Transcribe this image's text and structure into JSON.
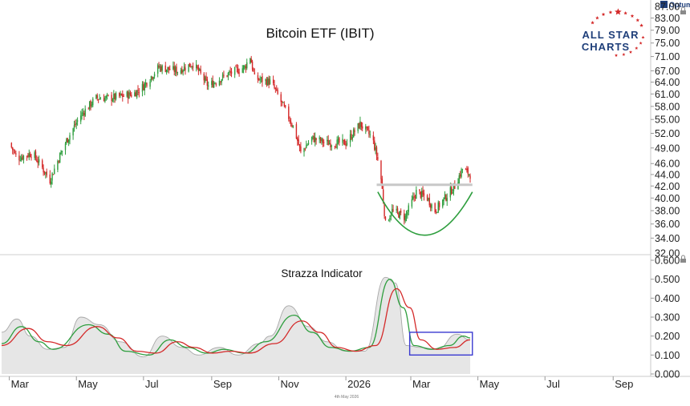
{
  "colors": {
    "up": "#2e9e3e",
    "down": "#d42a2a",
    "fast_line": "#2e9e3e",
    "slow_line": "#d42a2a",
    "area_fill": "#e6e6e6",
    "area_line": "#a8a8a8",
    "resistance": "#c8c8c8",
    "arc": "#2e9e3e",
    "box": "#3a3ad0",
    "logo_text": "#1f3f7a",
    "logo_star": "#d42a2a"
  },
  "brand": {
    "line1": "ALL STAR",
    "line2": "CHARTS",
    "corner": "Optuma"
  },
  "watermark": "4th May 2026",
  "chart_data": [
    {
      "type": "candlestick",
      "title": "Bitcoin ETF (IBIT)",
      "y_scale": "log",
      "ylim": [
        32.0,
        87.0
      ],
      "y_ticks": [
        "83.00",
        "79.00",
        "75.00",
        "71.00",
        "67.00",
        "64.00",
        "61.00",
        "58.00",
        "55.00",
        "52.00",
        "49.00",
        "46.00",
        "44.00",
        "42.00",
        "40.00",
        "38.00",
        "36.00",
        "34.00"
      ],
      "y_ticks_partial": [
        "87.00",
        "32.00"
      ],
      "price_path": [
        [
          "2025-03-01",
          50
        ],
        [
          "2025-03-08",
          47
        ],
        [
          "2025-03-22",
          48
        ],
        [
          "2025-04-07",
          43
        ],
        [
          "2025-04-21",
          50
        ],
        [
          "2025-05-05",
          56
        ],
        [
          "2025-05-19",
          60
        ],
        [
          "2025-06-01",
          60
        ],
        [
          "2025-06-22",
          61
        ],
        [
          "2025-07-01",
          63
        ],
        [
          "2025-07-15",
          68
        ],
        [
          "2025-08-01",
          67
        ],
        [
          "2025-08-15",
          69
        ],
        [
          "2025-08-29",
          63
        ],
        [
          "2025-09-15",
          66
        ],
        [
          "2025-10-01",
          68
        ],
        [
          "2025-10-06",
          71
        ],
        [
          "2025-10-10",
          65
        ],
        [
          "2025-10-25",
          64
        ],
        [
          "2025-11-05",
          58
        ],
        [
          "2025-11-15",
          53
        ],
        [
          "2025-11-21",
          48
        ],
        [
          "2025-12-01",
          51
        ],
        [
          "2025-12-15",
          50
        ],
        [
          "2026-01-01",
          50
        ],
        [
          "2026-01-14",
          54
        ],
        [
          "2026-01-25",
          51
        ],
        [
          "2026-02-01",
          45
        ],
        [
          "2026-02-06",
          36
        ],
        [
          "2026-02-12",
          38
        ],
        [
          "2026-02-24",
          37
        ],
        [
          "2026-03-06",
          41
        ],
        [
          "2026-03-16",
          40
        ],
        [
          "2026-03-23",
          38
        ],
        [
          "2026-04-01",
          40
        ],
        [
          "2026-04-10",
          42
        ],
        [
          "2026-04-17",
          45
        ],
        [
          "2026-04-24",
          44
        ]
      ],
      "resistance_level": 42.2,
      "resistance_range": [
        "2026-01-29",
        "2026-04-26"
      ],
      "rounding_bottom": {
        "from": [
          "2026-01-30",
          41
        ],
        "low": [
          "2026-03-13",
          34.4
        ],
        "to": [
          "2026-04-26",
          41
        ]
      },
      "last_date": "2026-04-24"
    },
    {
      "type": "line",
      "title": "Strazza Indicator",
      "ylim": [
        0.0,
        0.6
      ],
      "y_ticks": [
        "0.600",
        "0.500",
        "0.400",
        "0.300",
        "0.200",
        "0.100",
        "0.000"
      ],
      "series": [
        {
          "role": "area",
          "values": [
            [
              "2025-02-22",
              0.22
            ],
            [
              "2025-03-08",
              0.29
            ],
            [
              "2025-03-20",
              0.2
            ],
            [
              "2025-04-05",
              0.13
            ],
            [
              "2025-04-20",
              0.14
            ],
            [
              "2025-05-05",
              0.3
            ],
            [
              "2025-05-22",
              0.26
            ],
            [
              "2025-06-10",
              0.17
            ],
            [
              "2025-07-01",
              0.09
            ],
            [
              "2025-07-18",
              0.2
            ],
            [
              "2025-08-05",
              0.14
            ],
            [
              "2025-08-20",
              0.1
            ],
            [
              "2025-09-08",
              0.14
            ],
            [
              "2025-09-25",
              0.1
            ],
            [
              "2025-10-14",
              0.16
            ],
            [
              "2025-10-24",
              0.2
            ],
            [
              "2025-11-10",
              0.36
            ],
            [
              "2025-11-28",
              0.25
            ],
            [
              "2025-12-15",
              0.17
            ],
            [
              "2026-01-01",
              0.12
            ],
            [
              "2026-01-18",
              0.12
            ],
            [
              "2026-02-06",
              0.51
            ],
            [
              "2026-02-15",
              0.48
            ],
            [
              "2026-02-25",
              0.15
            ],
            [
              "2026-03-10",
              0.14
            ],
            [
              "2026-03-25",
              0.13
            ],
            [
              "2026-04-12",
              0.21
            ],
            [
              "2026-04-24",
              0.18
            ]
          ]
        },
        {
          "role": "fast",
          "values": [
            [
              "2025-02-22",
              0.16
            ],
            [
              "2025-03-12",
              0.25
            ],
            [
              "2025-03-28",
              0.17
            ],
            [
              "2025-04-10",
              0.13
            ],
            [
              "2025-05-12",
              0.26
            ],
            [
              "2025-05-30",
              0.21
            ],
            [
              "2025-06-15",
              0.12
            ],
            [
              "2025-07-06",
              0.1
            ],
            [
              "2025-07-25",
              0.18
            ],
            [
              "2025-08-10",
              0.14
            ],
            [
              "2025-08-28",
              0.11
            ],
            [
              "2025-09-12",
              0.13
            ],
            [
              "2025-10-01",
              0.11
            ],
            [
              "2025-10-20",
              0.17
            ],
            [
              "2025-11-15",
              0.31
            ],
            [
              "2025-12-01",
              0.22
            ],
            [
              "2025-12-18",
              0.14
            ],
            [
              "2026-01-05",
              0.12
            ],
            [
              "2026-01-22",
              0.14
            ],
            [
              "2026-02-10",
              0.5
            ],
            [
              "2026-02-22",
              0.35
            ],
            [
              "2026-03-04",
              0.15
            ],
            [
              "2026-03-20",
              0.13
            ],
            [
              "2026-04-05",
              0.15
            ],
            [
              "2026-04-18",
              0.2
            ],
            [
              "2026-04-24",
              0.19
            ]
          ]
        },
        {
          "role": "slow",
          "values": [
            [
              "2025-02-22",
              0.15
            ],
            [
              "2025-03-18",
              0.24
            ],
            [
              "2025-04-05",
              0.17
            ],
            [
              "2025-04-22",
              0.15
            ],
            [
              "2025-05-20",
              0.25
            ],
            [
              "2025-06-08",
              0.19
            ],
            [
              "2025-06-25",
              0.12
            ],
            [
              "2025-07-12",
              0.11
            ],
            [
              "2025-08-01",
              0.17
            ],
            [
              "2025-08-16",
              0.14
            ],
            [
              "2025-09-02",
              0.11
            ],
            [
              "2025-09-18",
              0.12
            ],
            [
              "2025-10-05",
              0.11
            ],
            [
              "2025-10-28",
              0.16
            ],
            [
              "2025-11-22",
              0.28
            ],
            [
              "2025-12-08",
              0.22
            ],
            [
              "2025-12-24",
              0.14
            ],
            [
              "2026-01-10",
              0.12
            ],
            [
              "2026-01-28",
              0.15
            ],
            [
              "2026-02-16",
              0.45
            ],
            [
              "2026-02-28",
              0.35
            ],
            [
              "2026-03-10",
              0.18
            ],
            [
              "2026-03-25",
              0.13
            ],
            [
              "2026-04-10",
              0.14
            ],
            [
              "2026-04-24",
              0.18
            ]
          ]
        }
      ],
      "highlight_box": {
        "from": "2026-02-28",
        "to": "2026-04-26",
        "ylim": [
          0.1,
          0.22
        ]
      }
    }
  ],
  "x_axis": {
    "start": "2025-02-22",
    "end": "2026-09-30",
    "ticks": [
      {
        "date": "2025-03-01",
        "label": "Mar"
      },
      {
        "date": "2025-05-01",
        "label": "May"
      },
      {
        "date": "2025-07-01",
        "label": "Jul"
      },
      {
        "date": "2025-09-01",
        "label": "Sep"
      },
      {
        "date": "2025-11-01",
        "label": "Nov"
      },
      {
        "date": "2026-01-01",
        "label": "2026"
      },
      {
        "date": "2026-03-01",
        "label": "Mar"
      },
      {
        "date": "2026-05-01",
        "label": "May"
      },
      {
        "date": "2026-07-01",
        "label": "Jul"
      },
      {
        "date": "2026-09-01",
        "label": "Sep"
      }
    ]
  }
}
